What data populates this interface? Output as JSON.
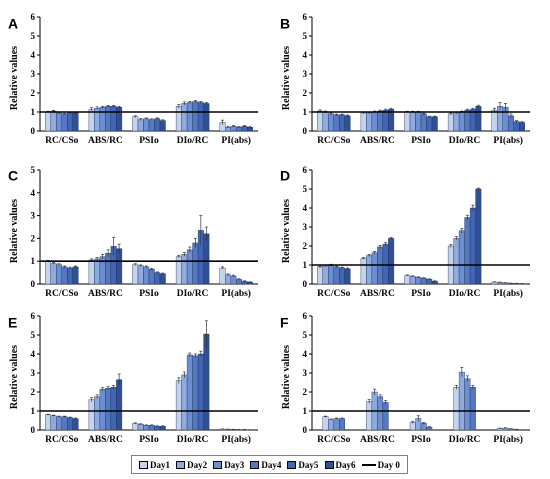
{
  "chart_data": [
    {
      "panel": "A",
      "type": "bar",
      "ylabel": "Relative values",
      "ylim": [
        0,
        6
      ],
      "yticks": [
        "0",
        "1",
        "2",
        "3",
        "4",
        "5",
        "6"
      ],
      "categories": [
        "RC/CSo",
        "ABS/RC",
        "PSIo",
        "DIo/RC",
        "PI(abs)"
      ],
      "reference_line": 1,
      "series": [
        {
          "name": "Day1",
          "values": [
            1.0,
            1.15,
            0.75,
            1.3,
            0.45
          ],
          "errors": [
            0.04,
            0.08,
            0.05,
            0.1,
            0.12
          ]
        },
        {
          "name": "Day2",
          "values": [
            1.05,
            1.2,
            0.6,
            1.45,
            0.2
          ],
          "errors": [
            0.04,
            0.07,
            0.05,
            0.08,
            0.05
          ]
        },
        {
          "name": "Day3",
          "values": [
            0.95,
            1.25,
            0.65,
            1.5,
            0.25
          ],
          "errors": [
            0.04,
            0.05,
            0.04,
            0.06,
            0.04
          ]
        },
        {
          "name": "Day4",
          "values": [
            0.9,
            1.3,
            0.6,
            1.55,
            0.2
          ],
          "errors": [
            0.03,
            0.05,
            0.04,
            0.06,
            0.03
          ]
        },
        {
          "name": "Day5",
          "values": [
            0.95,
            1.3,
            0.65,
            1.5,
            0.25
          ],
          "errors": [
            0.03,
            0.05,
            0.04,
            0.05,
            0.04
          ]
        },
        {
          "name": "Day6",
          "values": [
            0.95,
            1.25,
            0.55,
            1.45,
            0.2
          ],
          "errors": [
            0.03,
            0.05,
            0.04,
            0.05,
            0.03
          ]
        }
      ]
    },
    {
      "panel": "B",
      "type": "bar",
      "ylabel": "Relative values",
      "ylim": [
        0,
        6
      ],
      "yticks": [
        "0",
        "1",
        "2",
        "3",
        "4",
        "5",
        "6"
      ],
      "categories": [
        "RC/CSo",
        "ABS/RC",
        "PSIo",
        "DIo/RC",
        "PI(abs)"
      ],
      "reference_line": 1,
      "series": [
        {
          "name": "Day1",
          "values": [
            1.05,
            0.95,
            1.0,
            0.9,
            1.1
          ],
          "errors": [
            0.06,
            0.05,
            0.04,
            0.05,
            0.1
          ]
        },
        {
          "name": "Day2",
          "values": [
            1.0,
            0.95,
            1.0,
            0.95,
            1.3
          ],
          "errors": [
            0.05,
            0.05,
            0.04,
            0.05,
            0.2
          ]
        },
        {
          "name": "Day3",
          "values": [
            0.9,
            1.0,
            1.0,
            1.0,
            1.25
          ],
          "errors": [
            0.05,
            0.05,
            0.04,
            0.05,
            0.2
          ]
        },
        {
          "name": "Day4",
          "values": [
            0.85,
            1.05,
            0.9,
            1.1,
            0.8
          ],
          "errors": [
            0.04,
            0.05,
            0.04,
            0.05,
            0.1
          ]
        },
        {
          "name": "Day5",
          "values": [
            0.85,
            1.1,
            0.75,
            1.15,
            0.5
          ],
          "errors": [
            0.04,
            0.05,
            0.03,
            0.05,
            0.05
          ]
        },
        {
          "name": "Day6",
          "values": [
            0.8,
            1.15,
            0.75,
            1.3,
            0.45
          ],
          "errors": [
            0.04,
            0.05,
            0.03,
            0.06,
            0.04
          ]
        }
      ]
    },
    {
      "panel": "C",
      "type": "bar",
      "ylabel": "Relative values",
      "ylim": [
        0,
        5
      ],
      "yticks": [
        "0",
        "1",
        "2",
        "3",
        "4",
        "5"
      ],
      "categories": [
        "RC/CSo",
        "ABS/RC",
        "PSIo",
        "DIo/RC",
        "PI(abs)"
      ],
      "reference_line": 1,
      "series": [
        {
          "name": "Day1",
          "values": [
            1.0,
            1.05,
            0.85,
            1.2,
            0.7
          ],
          "errors": [
            0.04,
            0.05,
            0.04,
            0.06,
            0.05
          ]
        },
        {
          "name": "Day2",
          "values": [
            0.9,
            1.1,
            0.8,
            1.3,
            0.4
          ],
          "errors": [
            0.04,
            0.06,
            0.04,
            0.08,
            0.04
          ]
        },
        {
          "name": "Day3",
          "values": [
            0.85,
            1.2,
            0.75,
            1.5,
            0.35
          ],
          "errors": [
            0.04,
            0.1,
            0.04,
            0.12,
            0.04
          ]
        },
        {
          "name": "Day4",
          "values": [
            0.75,
            1.35,
            0.65,
            1.8,
            0.2
          ],
          "errors": [
            0.04,
            0.15,
            0.04,
            0.2,
            0.03
          ]
        },
        {
          "name": "Day5",
          "values": [
            0.7,
            1.65,
            0.5,
            2.35,
            0.12
          ],
          "errors": [
            0.04,
            0.4,
            0.03,
            0.65,
            0.02
          ]
        },
        {
          "name": "Day6",
          "values": [
            0.75,
            1.55,
            0.45,
            2.2,
            0.08
          ],
          "errors": [
            0.04,
            0.2,
            0.03,
            0.3,
            0.02
          ]
        }
      ]
    },
    {
      "panel": "D",
      "type": "bar",
      "ylabel": "Relative values",
      "ylim": [
        0,
        6
      ],
      "yticks": [
        "0",
        "1",
        "2",
        "3",
        "4",
        "5",
        "6"
      ],
      "categories": [
        "RC/CSo",
        "ABS/RC",
        "PSIo",
        "DIo/RC",
        "PI(abs)"
      ],
      "reference_line": 1,
      "series": [
        {
          "name": "Day1",
          "values": [
            0.9,
            1.35,
            0.45,
            2.0,
            0.1
          ],
          "errors": [
            0.04,
            0.05,
            0.03,
            0.08,
            0.02
          ]
        },
        {
          "name": "Day2",
          "values": [
            0.95,
            1.5,
            0.4,
            2.4,
            0.08
          ],
          "errors": [
            0.04,
            0.06,
            0.03,
            0.1,
            0.02
          ]
        },
        {
          "name": "Day3",
          "values": [
            1.0,
            1.65,
            0.35,
            2.8,
            0.06
          ],
          "errors": [
            0.04,
            0.07,
            0.03,
            0.12,
            0.01
          ]
        },
        {
          "name": "Day4",
          "values": [
            0.9,
            1.95,
            0.3,
            3.5,
            0.04
          ],
          "errors": [
            0.04,
            0.08,
            0.03,
            0.12,
            0.01
          ]
        },
        {
          "name": "Day5",
          "values": [
            0.85,
            2.1,
            0.25,
            4.0,
            0.03
          ],
          "errors": [
            0.04,
            0.08,
            0.02,
            0.15,
            0.01
          ]
        },
        {
          "name": "Day6",
          "values": [
            0.8,
            2.4,
            0.15,
            5.0,
            0.02
          ],
          "errors": [
            0.04,
            0.05,
            0.02,
            0.05,
            0.01
          ]
        }
      ]
    },
    {
      "panel": "E",
      "type": "bar",
      "ylabel": "Relative values",
      "ylim": [
        0,
        6
      ],
      "yticks": [
        "0",
        "1",
        "2",
        "3",
        "4",
        "5",
        "6"
      ],
      "categories": [
        "RC/CSo",
        "ABS/RC",
        "PSIo",
        "DIo/RC",
        "PI(abs)"
      ],
      "reference_line": 1,
      "series": [
        {
          "name": "Day1",
          "values": [
            0.8,
            1.6,
            0.35,
            2.6,
            0.05
          ],
          "errors": [
            0.03,
            0.1,
            0.03,
            0.15,
            0.01
          ]
        },
        {
          "name": "Day2",
          "values": [
            0.75,
            1.75,
            0.3,
            2.9,
            0.04
          ],
          "errors": [
            0.03,
            0.1,
            0.03,
            0.15,
            0.01
          ]
        },
        {
          "name": "Day3",
          "values": [
            0.7,
            2.15,
            0.25,
            3.95,
            0.03
          ],
          "errors": [
            0.03,
            0.08,
            0.02,
            0.1,
            0.01
          ]
        },
        {
          "name": "Day4",
          "values": [
            0.7,
            2.2,
            0.25,
            3.9,
            0.02
          ],
          "errors": [
            0.03,
            0.08,
            0.02,
            0.1,
            0.01
          ]
        },
        {
          "name": "Day5",
          "values": [
            0.65,
            2.25,
            0.2,
            4.0,
            0.02
          ],
          "errors": [
            0.03,
            0.1,
            0.02,
            0.15,
            0.01
          ]
        },
        {
          "name": "Day6",
          "values": [
            0.6,
            2.65,
            0.2,
            5.05,
            0.01
          ],
          "errors": [
            0.03,
            0.3,
            0.02,
            0.7,
            0.01
          ]
        }
      ]
    },
    {
      "panel": "F",
      "type": "bar",
      "ylabel": "Relative values",
      "ylim": [
        0,
        6
      ],
      "yticks": [
        "0",
        "1",
        "2",
        "3",
        "4",
        "5",
        "6"
      ],
      "categories": [
        "RC/CSo",
        "ABS/RC",
        "PSIo",
        "DIo/RC",
        "PI(abs)"
      ],
      "reference_line": 1,
      "series": [
        {
          "name": "Day1",
          "values": [
            0.7,
            1.5,
            0.4,
            2.25,
            0.08
          ],
          "errors": [
            0.03,
            0.1,
            0.05,
            0.1,
            0.02
          ]
        },
        {
          "name": "Day2",
          "values": [
            0.55,
            2.0,
            0.6,
            3.05,
            0.1
          ],
          "errors": [
            0.03,
            0.15,
            0.15,
            0.25,
            0.02
          ]
        },
        {
          "name": "Day3",
          "values": [
            0.6,
            1.75,
            0.35,
            2.7,
            0.06
          ],
          "errors": [
            0.03,
            0.1,
            0.05,
            0.15,
            0.01
          ]
        },
        {
          "name": "Day4",
          "values": [
            0.6,
            1.45,
            0.15,
            2.25,
            0.03
          ],
          "errors": [
            0.03,
            0.1,
            0.03,
            0.1,
            0.01
          ]
        }
      ]
    }
  ],
  "legend": {
    "items": [
      {
        "label": "Day1",
        "color": "#c5d4ee"
      },
      {
        "label": "Day2",
        "color": "#8eaade"
      },
      {
        "label": "Day3",
        "color": "#6d8fd2"
      },
      {
        "label": "Day4",
        "color": "#5478c2"
      },
      {
        "label": "Day5",
        "color": "#4266b3"
      },
      {
        "label": "Day6",
        "color": "#2f4f96"
      }
    ],
    "line_label": "Day 0"
  }
}
